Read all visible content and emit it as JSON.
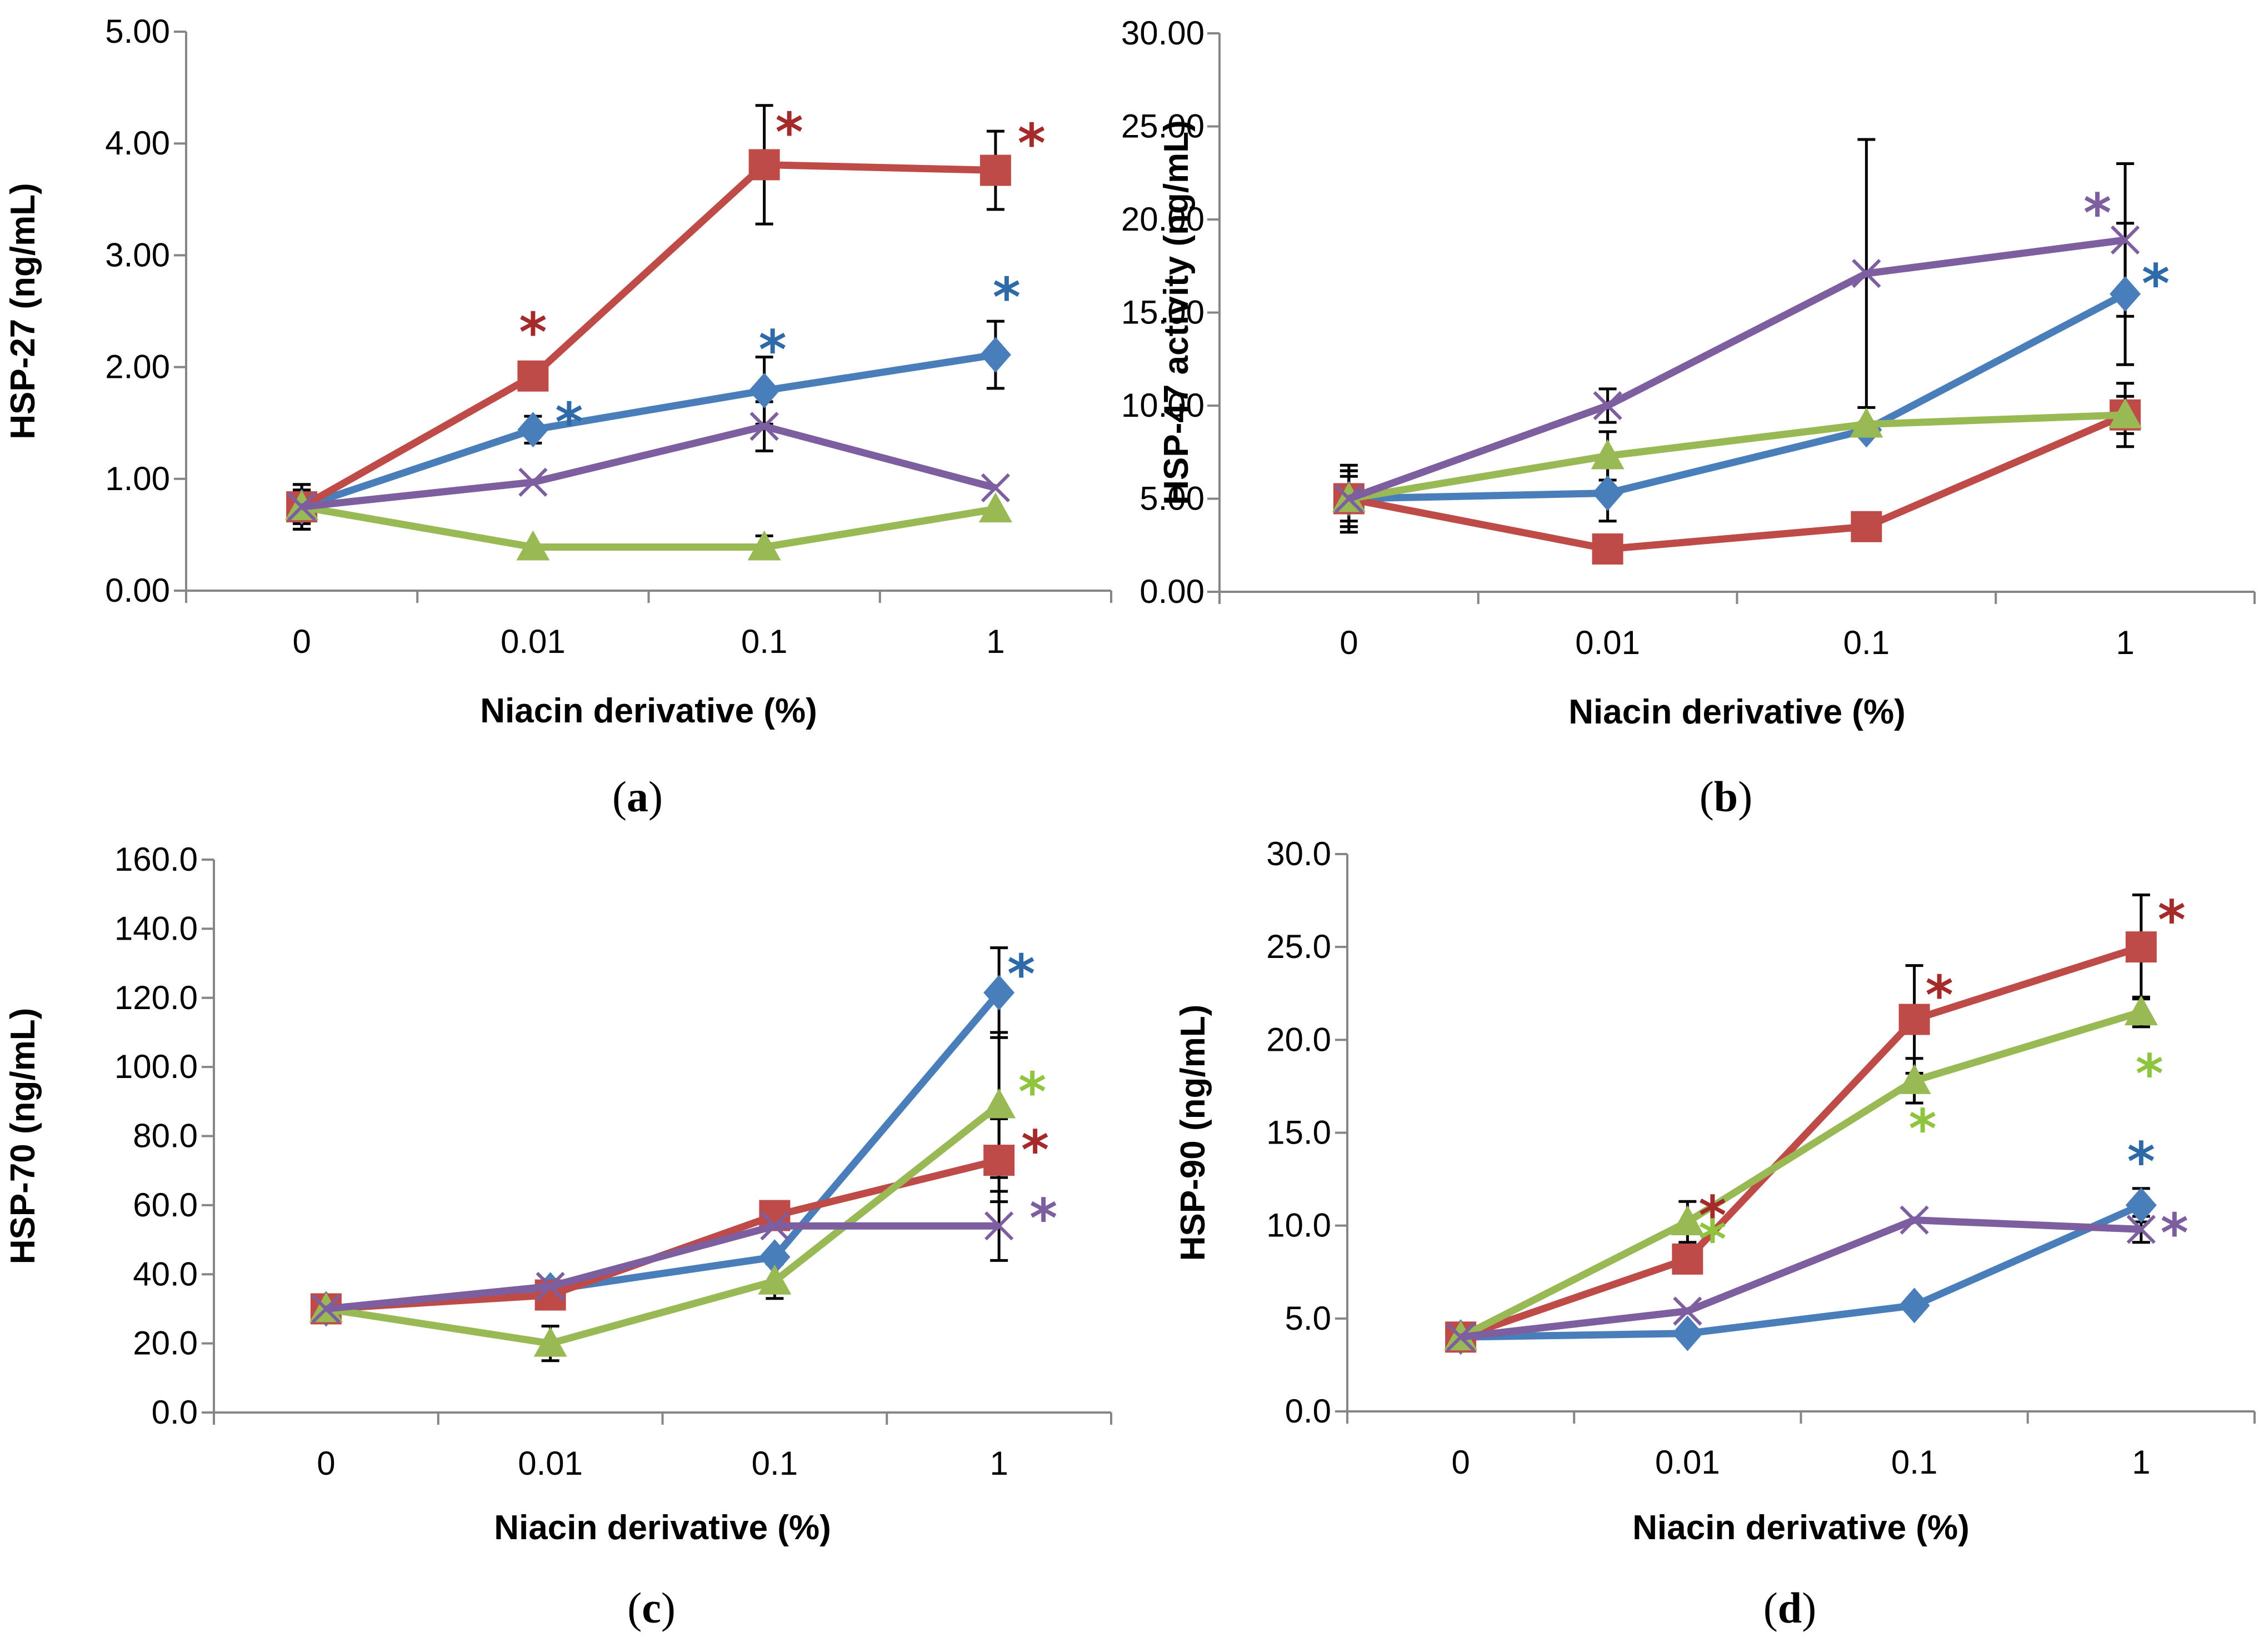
{
  "colors": {
    "blue": "#4a7ebb",
    "red": "#be4b48",
    "green": "#98b954",
    "purple": "#7d5fa0",
    "star_blue": "#2e6aa8",
    "star_red": "#a52a2a",
    "star_green": "#8fc43e",
    "star_purple": "#7d5fa0"
  },
  "chart_data": [
    {
      "id": "a",
      "type": "line",
      "panel_label": "a",
      "xlabel": "Niacin derivative (%)",
      "ylabel": "HSP-27 (ng/mL)",
      "categories": [
        "0",
        "0.01",
        "0.1",
        "1"
      ],
      "ylim": [
        0,
        5
      ],
      "yticks": [
        "0.00",
        "1.00",
        "2.00",
        "3.00",
        "4.00",
        "5.00"
      ],
      "series": [
        {
          "name": "blue",
          "marker": "diamond",
          "values": [
            0.75,
            1.44,
            1.79,
            2.11
          ],
          "errors": [
            0.2,
            0.12,
            0.3,
            0.3
          ],
          "stars": [
            false,
            true,
            true,
            true
          ]
        },
        {
          "name": "red",
          "marker": "square",
          "values": [
            0.75,
            1.92,
            3.81,
            3.76
          ],
          "errors": [
            0.2,
            0,
            0.53,
            0.35
          ],
          "stars": [
            false,
            true,
            true,
            true
          ]
        },
        {
          "name": "green",
          "marker": "triangle",
          "values": [
            0.75,
            0.39,
            0.39,
            0.73
          ],
          "errors": [
            0.15,
            0,
            0.1,
            0
          ],
          "stars": [
            false,
            false,
            false,
            false
          ]
        },
        {
          "name": "purple",
          "marker": "x",
          "values": [
            0.75,
            0.97,
            1.47,
            0.92
          ],
          "errors": [
            0.15,
            0,
            0.22,
            0
          ],
          "stars": [
            false,
            false,
            false,
            false
          ]
        }
      ]
    },
    {
      "id": "b",
      "type": "line",
      "panel_label": "b",
      "xlabel": "Niacin derivative (%)",
      "ylabel": "HSP-47 activity (ng/mL)",
      "categories": [
        "0",
        "0.01",
        "0.1",
        "1"
      ],
      "ylim": [
        0,
        30
      ],
      "yticks": [
        "0.00",
        "5.00",
        "10.00",
        "15.00",
        "20.00",
        "25.00",
        "30.00"
      ],
      "series": [
        {
          "name": "blue",
          "marker": "diamond",
          "values": [
            5.0,
            5.3,
            8.7,
            16.0
          ],
          "errors": [
            1.8,
            1.5,
            0,
            3.8
          ],
          "stars": [
            false,
            false,
            false,
            true
          ]
        },
        {
          "name": "red",
          "marker": "square",
          "values": [
            5.0,
            2.3,
            3.5,
            9.5
          ],
          "errors": [
            1.5,
            0,
            0,
            1.7
          ],
          "stars": [
            false,
            false,
            false,
            false
          ]
        },
        {
          "name": "green",
          "marker": "triangle",
          "values": [
            5.0,
            7.3,
            9.0,
            9.5
          ],
          "errors": [
            1.2,
            1.3,
            0,
            1.0
          ],
          "stars": [
            false,
            false,
            false,
            false
          ]
        },
        {
          "name": "purple",
          "marker": "x",
          "values": [
            5.0,
            10.0,
            17.1,
            18.9
          ],
          "errors": [
            1.5,
            0.9,
            7.2,
            4.1
          ],
          "stars": [
            false,
            false,
            false,
            true
          ]
        }
      ]
    },
    {
      "id": "c",
      "type": "line",
      "panel_label": "c",
      "xlabel": "Niacin derivative (%)",
      "ylabel": "HSP-70 (ng/mL)",
      "categories": [
        "0",
        "0.01",
        "0.1",
        "1"
      ],
      "ylim": [
        0,
        160
      ],
      "yticks": [
        "0.0",
        "20.0",
        "40.0",
        "60.0",
        "80.0",
        "100.0",
        "120.0",
        "140.0",
        "160.0"
      ],
      "series": [
        {
          "name": "blue",
          "marker": "diamond",
          "values": [
            30.0,
            35.5,
            45.0,
            121.5
          ],
          "errors": [
            4,
            3,
            0,
            13
          ],
          "stars": [
            false,
            false,
            false,
            true
          ]
        },
        {
          "name": "red",
          "marker": "square",
          "values": [
            30.0,
            34.0,
            57.0,
            73.0
          ],
          "errors": [
            4,
            4,
            4,
            12
          ],
          "stars": [
            false,
            false,
            false,
            true
          ]
        },
        {
          "name": "green",
          "marker": "triangle",
          "values": [
            30.0,
            20.0,
            38.0,
            89.0
          ],
          "errors": [
            3,
            5,
            5,
            21
          ],
          "stars": [
            false,
            false,
            false,
            true
          ]
        },
        {
          "name": "purple",
          "marker": "x",
          "values": [
            30.0,
            36.5,
            54.0,
            54.0
          ],
          "errors": [
            3,
            2,
            0,
            10
          ],
          "stars": [
            false,
            false,
            false,
            true
          ]
        }
      ]
    },
    {
      "id": "d",
      "type": "line",
      "panel_label": "d",
      "xlabel": "Niacin derivative (%)",
      "ylabel": "HSP-90 (ng/mL)",
      "categories": [
        "0",
        "0.01",
        "0.1",
        "1"
      ],
      "ylim": [
        0,
        30
      ],
      "yticks": [
        "0.0",
        "5.0",
        "10.0",
        "15.0",
        "20.0",
        "25.0",
        "30.0"
      ],
      "series": [
        {
          "name": "blue",
          "marker": "diamond",
          "values": [
            4.0,
            4.2,
            5.7,
            11.1
          ],
          "errors": [
            0,
            0,
            0,
            0.9
          ],
          "stars": [
            false,
            false,
            false,
            true
          ]
        },
        {
          "name": "red",
          "marker": "square",
          "values": [
            4.0,
            8.2,
            21.1,
            25.0
          ],
          "errors": [
            0,
            0,
            2.9,
            2.8
          ],
          "stars": [
            false,
            true,
            true,
            true
          ]
        },
        {
          "name": "green",
          "marker": "triangle",
          "values": [
            4.0,
            10.2,
            17.8,
            21.5
          ],
          "errors": [
            0,
            1.1,
            1.2,
            0.8
          ],
          "stars": [
            false,
            true,
            true,
            true
          ]
        },
        {
          "name": "purple",
          "marker": "x",
          "values": [
            4.0,
            5.4,
            10.3,
            9.8
          ],
          "errors": [
            0,
            0,
            0,
            0.7
          ],
          "stars": [
            false,
            false,
            false,
            true
          ]
        }
      ]
    }
  ]
}
